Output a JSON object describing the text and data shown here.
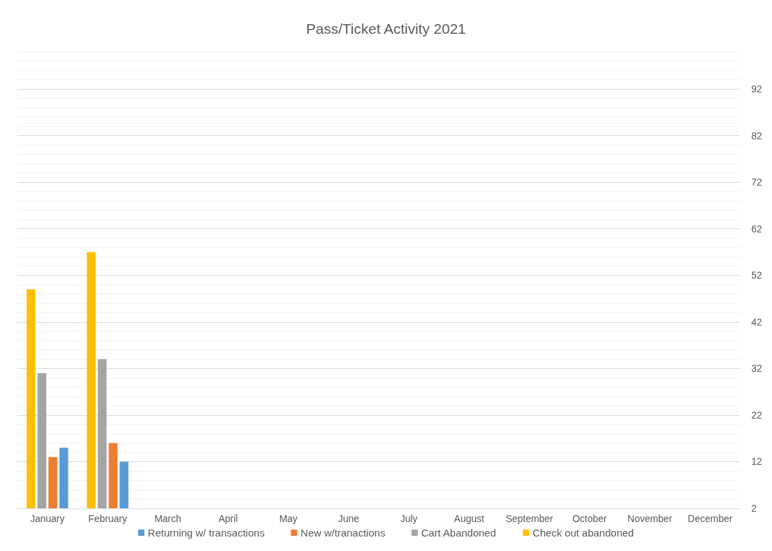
{
  "chart_data": {
    "type": "bar",
    "title": "Pass/Ticket Activity 2021",
    "categories": [
      "January",
      "February",
      "March",
      "April",
      "May",
      "June",
      "July",
      "August",
      "September",
      "October",
      "November",
      "December"
    ],
    "series": [
      {
        "name": "Check out abandoned",
        "color": "#ffc000",
        "values": [
          49,
          57,
          null,
          null,
          null,
          null,
          null,
          null,
          null,
          null,
          null,
          null
        ]
      },
      {
        "name": "Cart Abandoned",
        "color": "#a5a5a5",
        "values": [
          31,
          34,
          null,
          null,
          null,
          null,
          null,
          null,
          null,
          null,
          null,
          null
        ]
      },
      {
        "name": "New w/tranactions",
        "color": "#ed7d31",
        "values": [
          13,
          16,
          null,
          null,
          null,
          null,
          null,
          null,
          null,
          null,
          null,
          null
        ]
      },
      {
        "name": "Returning w/ transactions",
        "color": "#5b9bd5",
        "values": [
          15,
          12,
          null,
          null,
          null,
          null,
          null,
          null,
          null,
          null,
          null,
          null
        ]
      }
    ],
    "ylim": [
      2,
      100
    ],
    "yticks": [
      2,
      12,
      22,
      32,
      42,
      52,
      62,
      72,
      82,
      92
    ],
    "grid": "y",
    "legend": "bottom"
  }
}
